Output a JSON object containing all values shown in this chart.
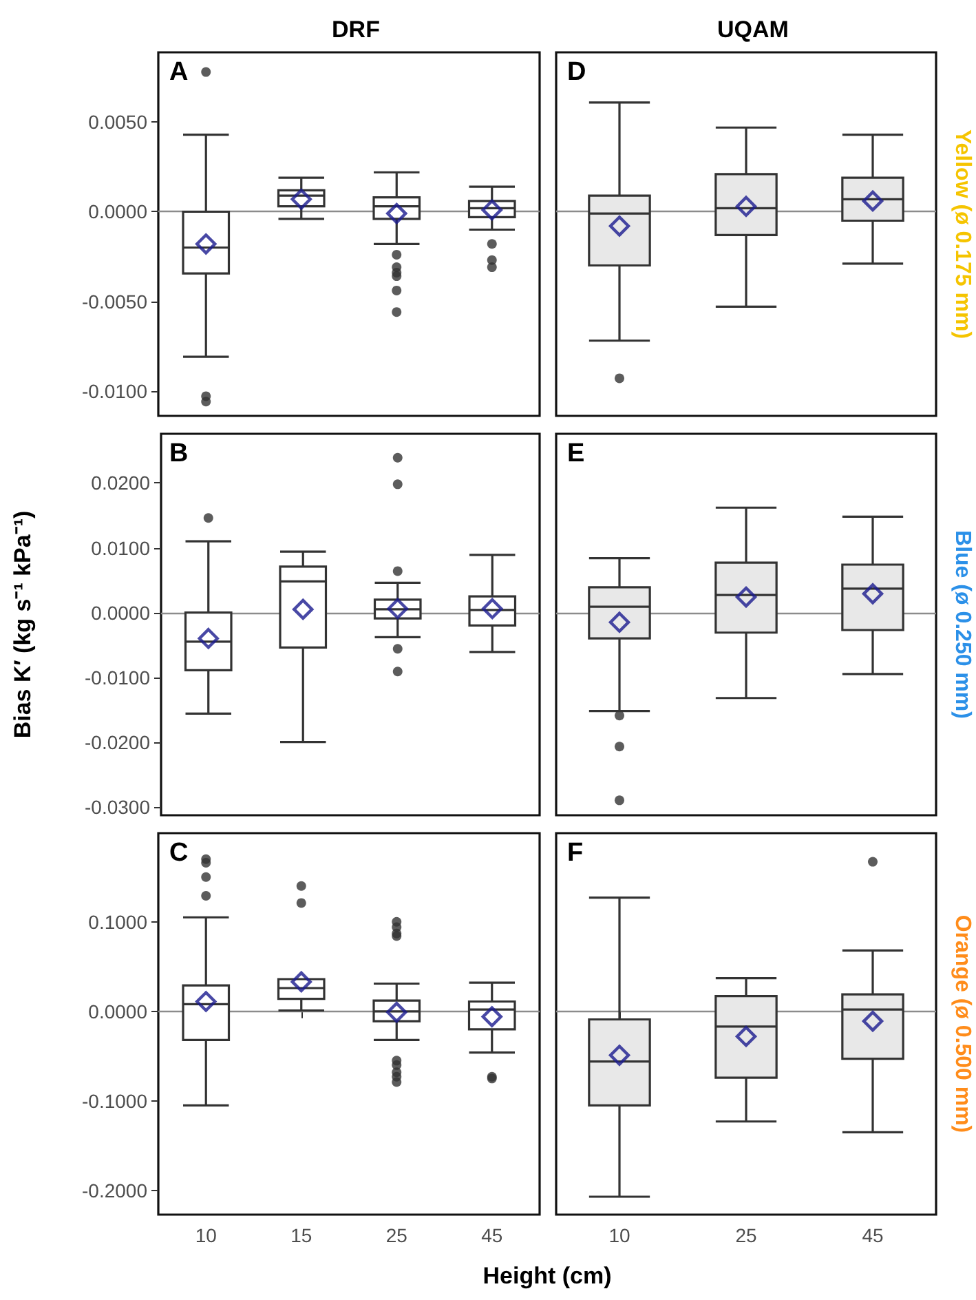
{
  "chart_data": [
    {
      "type": "box",
      "title": "DRF",
      "annotations": [
        "A"
      ],
      "categories": [
        "10",
        "15",
        "25",
        "45"
      ],
      "ylim": [
        -0.0114,
        0.0089
      ],
      "yticks": [
        {
          "value": -0.01,
          "label": "-0.0100"
        },
        {
          "value": -0.005,
          "label": "-0.0050"
        },
        {
          "value": 0,
          "label": "0.0000"
        },
        {
          "value": 0.005,
          "label": "0.0050"
        }
      ],
      "tick_labels": "y",
      "ref_lines": [
        {
          "axis": "y",
          "value": 0,
          "color": "#8c8c8c"
        }
      ],
      "series": [
        {
          "color": "#ffffff",
          "boxes": [
            {
              "low": -0.0081,
              "q1": -0.00345,
              "median": -0.002,
              "q3": 0.0,
              "high": 0.0043,
              "mean": -0.0018,
              "outliers": [
                0.0078,
                -0.0103,
                -0.0106
              ]
            },
            {
              "low": -0.0004,
              "q1": 0.0003,
              "median": 0.0009,
              "q3": 0.0012,
              "high": 0.0019,
              "mean": 0.0007
            },
            {
              "low": -0.0018,
              "q1": -0.0004,
              "median": 0.0003,
              "q3": 0.0008,
              "high": 0.0022,
              "mean": -0.0001,
              "outliers": [
                -0.0024,
                -0.0031,
                -0.0034,
                -0.0036,
                -0.0044,
                -0.0056
              ]
            },
            {
              "low": -0.001,
              "q1": -0.0003,
              "median": 0.0002,
              "q3": 0.0006,
              "high": 0.0014,
              "mean": 0.0001,
              "outliers": [
                -0.0018,
                -0.0027,
                -0.0031
              ]
            }
          ]
        }
      ]
    },
    {
      "type": "box",
      "title": "UQAM",
      "annotations": [
        "D"
      ],
      "y2label": "Yellow (ø 0.175 mm)",
      "categories": [
        "10",
        "25",
        "45"
      ],
      "ylim": [
        -0.0114,
        0.0089
      ],
      "tick_labels": false,
      "ref_lines": [
        {
          "axis": "y",
          "value": 0,
          "color": "#8c8c8c"
        }
      ],
      "series": [
        {
          "color": "#e8e8e8",
          "boxes": [
            {
              "low": -0.0072,
              "q1": -0.003,
              "median": -0.0001,
              "q3": 0.0009,
              "high": 0.0061,
              "mean": -0.0008,
              "outliers": [
                -0.0093
              ]
            },
            {
              "low": -0.0053,
              "q1": -0.0013,
              "median": 0.0002,
              "q3": 0.0021,
              "high": 0.0047,
              "mean": 0.0003
            },
            {
              "low": -0.0029,
              "q1": -0.0005,
              "median": 0.0007,
              "q3": 0.0019,
              "high": 0.0043,
              "mean": 0.0006
            }
          ]
        }
      ]
    },
    {
      "type": "box",
      "annotations": [
        "B"
      ],
      "ylabel": "Bias K′ (kg s⁻¹ kPa⁻¹)",
      "categories": [
        "10",
        "15",
        "25",
        "45"
      ],
      "ylim": [
        -0.0313,
        0.0276
      ],
      "yticks": [
        {
          "value": -0.03,
          "label": "-0.0300"
        },
        {
          "value": -0.02,
          "label": "-0.0200"
        },
        {
          "value": -0.01,
          "label": "-0.0100"
        },
        {
          "value": 0,
          "label": "0.0000"
        },
        {
          "value": 0.01,
          "label": "0.0100"
        },
        {
          "value": 0.02,
          "label": "0.0200"
        }
      ],
      "tick_labels": "y",
      "ref_lines": [
        {
          "axis": "y",
          "value": 0,
          "color": "#8c8c8c"
        }
      ],
      "series": [
        {
          "color": "#ffffff",
          "boxes": [
            {
              "low": -0.0156,
              "q1": -0.0089,
              "median": -0.0045,
              "q3": 0.0,
              "high": 0.011,
              "mean": -0.004,
              "outliers": [
                0.0146
              ]
            },
            {
              "low": -0.02,
              "q1": -0.0054,
              "median": 0.0048,
              "q3": 0.0071,
              "high": 0.0094,
              "mean": 0.0005
            },
            {
              "low": -0.0038,
              "q1": -0.0009,
              "median": 0.0005,
              "q3": 0.002,
              "high": 0.0046,
              "mean": 0.0006,
              "outliers": [
                0.0239,
                0.0198,
                0.0064,
                -0.0056,
                -0.0091
              ]
            },
            {
              "low": -0.0061,
              "q1": -0.002,
              "median": 0.0004,
              "q3": 0.0025,
              "high": 0.0089,
              "mean": 0.0006
            }
          ]
        }
      ]
    },
    {
      "type": "box",
      "annotations": [
        "E"
      ],
      "y2label": "Blue (ø 0.250 mm)",
      "categories": [
        "10",
        "25",
        "45"
      ],
      "ylim": [
        -0.0313,
        0.0276
      ],
      "tick_labels": false,
      "ref_lines": [
        {
          "axis": "y",
          "value": 0,
          "color": "#8c8c8c"
        }
      ],
      "series": [
        {
          "color": "#e8e8e8",
          "boxes": [
            {
              "low": -0.0152,
              "q1": -0.004,
              "median": 0.0009,
              "q3": 0.0039,
              "high": 0.0084,
              "mean": -0.0015,
              "outliers": [
                -0.0159,
                -0.0207,
                -0.029
              ]
            },
            {
              "low": -0.0132,
              "q1": -0.0031,
              "median": 0.0027,
              "q3": 0.0077,
              "high": 0.0162,
              "mean": 0.0024
            },
            {
              "low": -0.0095,
              "q1": -0.0027,
              "median": 0.0037,
              "q3": 0.0074,
              "high": 0.0148,
              "mean": 0.0029
            }
          ]
        }
      ]
    },
    {
      "type": "box",
      "annotations": [
        "C"
      ],
      "xlabel": "Height (cm)",
      "categories": [
        "10",
        "15",
        "25",
        "45"
      ],
      "ylim": [
        -0.227,
        0.199
      ],
      "yticks": [
        {
          "value": -0.2,
          "label": "-0.2000"
        },
        {
          "value": -0.1,
          "label": "-0.1000"
        },
        {
          "value": 0,
          "label": "0.0000"
        },
        {
          "value": 0.1,
          "label": "0.1000"
        }
      ],
      "ref_lines": [
        {
          "axis": "y",
          "value": 0,
          "color": "#8c8c8c"
        }
      ],
      "series": [
        {
          "color": "#ffffff",
          "boxes": [
            {
              "low": -0.105,
              "q1": -0.032,
              "median": 0.008,
              "q3": 0.029,
              "high": 0.105,
              "mean": 0.011,
              "outliers": [
                0.17,
                0.166,
                0.15,
                0.129
              ]
            },
            {
              "low": 0.001,
              "q1": 0.014,
              "median": 0.026,
              "q3": 0.036,
              "high": 0.036,
              "mean": 0.033,
              "outliers": [
                0.14,
                0.121
              ]
            },
            {
              "low": -0.032,
              "q1": -0.011,
              "median": 0.0,
              "q3": 0.012,
              "high": 0.031,
              "mean": -0.001,
              "outliers": [
                0.1,
                0.094,
                0.087,
                0.084,
                -0.055,
                -0.06,
                -0.068,
                -0.073,
                -0.079
              ]
            },
            {
              "low": -0.046,
              "q1": -0.02,
              "median": 0.002,
              "q3": 0.011,
              "high": 0.032,
              "mean": -0.006,
              "outliers": [
                -0.073,
                -0.075
              ]
            }
          ]
        }
      ]
    },
    {
      "type": "box",
      "annotations": [
        "F"
      ],
      "y2label": "Orange (ø 0.500 mm)",
      "categories": [
        "10",
        "25",
        "45"
      ],
      "ylim": [
        -0.227,
        0.199
      ],
      "tick_labels": "x",
      "ref_lines": [
        {
          "axis": "y",
          "value": 0,
          "color": "#8c8c8c"
        }
      ],
      "series": [
        {
          "color": "#e8e8e8",
          "boxes": [
            {
              "low": -0.207,
              "q1": -0.105,
              "median": -0.056,
              "q3": -0.009,
              "high": 0.127,
              "mean": -0.049
            },
            {
              "low": -0.123,
              "q1": -0.074,
              "median": -0.017,
              "q3": 0.017,
              "high": 0.037,
              "mean": -0.028
            },
            {
              "low": -0.135,
              "q1": -0.053,
              "median": 0.002,
              "q3": 0.019,
              "high": 0.068,
              "mean": -0.011,
              "outliers": [
                0.167
              ]
            }
          ]
        }
      ]
    }
  ]
}
